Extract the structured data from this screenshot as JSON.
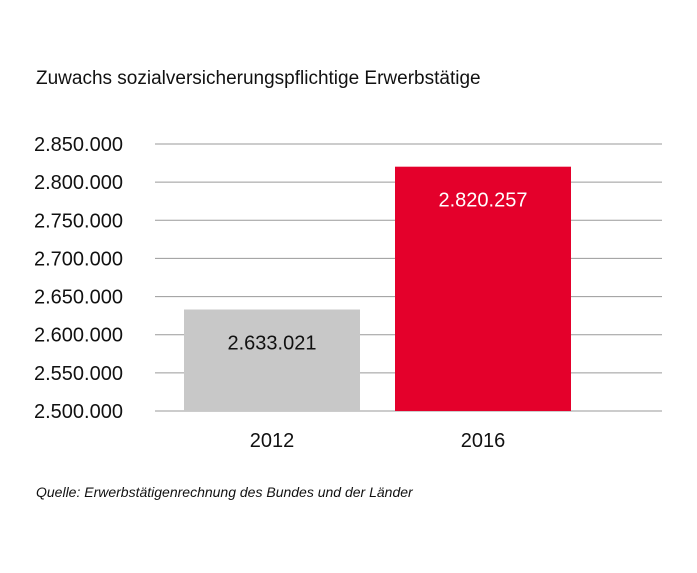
{
  "chart_data": {
    "type": "bar",
    "title": "Zuwachs sozialversicherungspflichtige Erwerbstätige",
    "categories": [
      "2012",
      "2016"
    ],
    "values": [
      2633021,
      2820257
    ],
    "value_labels": [
      "2.633.021",
      "2.820.257"
    ],
    "bar_colors": [
      "#c8c8c8",
      "#e4002b"
    ],
    "label_colors": [
      "#111111",
      "#ffffff"
    ],
    "ylim": [
      2500000,
      2850000
    ],
    "yticks": [
      2500000,
      2550000,
      2600000,
      2650000,
      2700000,
      2750000,
      2800000,
      2850000
    ],
    "ytick_labels": [
      "2.500.000",
      "2.550.000",
      "2.600.000",
      "2.650.000",
      "2.700.000",
      "2.750.000",
      "2.800.000",
      "2.850.000"
    ],
    "grid": true,
    "gridline_color": "#9a9a9a",
    "xlabel": "",
    "ylabel": ""
  },
  "source": "Quelle: Erwerbstätigenrechnung des Bundes und der Länder"
}
